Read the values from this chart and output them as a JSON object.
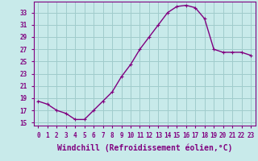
{
  "x": [
    0,
    1,
    2,
    3,
    4,
    5,
    6,
    7,
    8,
    9,
    10,
    11,
    12,
    13,
    14,
    15,
    16,
    17,
    18,
    19,
    20,
    21,
    22,
    23
  ],
  "y": [
    18.5,
    18.0,
    17.0,
    16.5,
    15.5,
    15.5,
    17.0,
    18.5,
    20.0,
    22.5,
    24.5,
    27.0,
    29.0,
    31.0,
    33.0,
    34.0,
    34.2,
    33.8,
    32.0,
    27.0,
    26.5,
    26.5,
    26.5,
    26.0
  ],
  "line_color": "#800080",
  "marker": "P",
  "marker_size": 2.5,
  "bg_color": "#c8eaea",
  "grid_color": "#a0cccc",
  "xlabel": "Windchill (Refroidissement éolien,°C)",
  "xlabel_fontsize": 7,
  "ylabel_ticks": [
    15,
    17,
    19,
    21,
    23,
    25,
    27,
    29,
    31,
    33
  ],
  "xlim": [
    -0.5,
    23.5
  ],
  "ylim": [
    14.5,
    34.8
  ],
  "xticks": [
    0,
    1,
    2,
    3,
    4,
    5,
    6,
    7,
    8,
    9,
    10,
    11,
    12,
    13,
    14,
    15,
    16,
    17,
    18,
    19,
    20,
    21,
    22,
    23
  ],
  "tick_fontsize": 5.5,
  "line_width": 1.0
}
